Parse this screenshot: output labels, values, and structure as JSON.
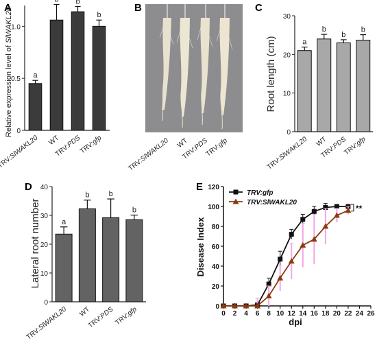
{
  "panels": {
    "A": {
      "label": "A",
      "chart_data": {
        "type": "bar",
        "categories": [
          "TRV:SlWAKL20",
          "WT",
          "TRV:PDS",
          "TRV:gfp"
        ],
        "values": [
          0.45,
          1.06,
          1.14,
          1.0
        ],
        "errors": [
          0.03,
          0.15,
          0.05,
          0.06
        ],
        "letters": [
          "a",
          "b",
          "b",
          "b"
        ],
        "ylabel_prefix": "Relative expression level of ",
        "ylabel_gene": "SlWAKL20",
        "ylim": [
          0,
          1.2
        ],
        "yticks": [
          "0",
          "0.5",
          "1.0"
        ],
        "ytick_values": [
          0,
          0.5,
          1.0
        ],
        "bar_color": "#3b3b3b"
      }
    },
    "B": {
      "label": "B",
      "categories": [
        "TRV:SlWAKL20",
        "WT",
        "TRV:PDS",
        "TRV:gfp"
      ],
      "photo_background": "#8d8d90"
    },
    "C": {
      "label": "C",
      "chart_data": {
        "type": "bar",
        "categories": [
          "TRV:SlWAKL20",
          "WT",
          "TRV:PDS",
          "TRV:gfp"
        ],
        "values": [
          21.0,
          24.0,
          23.0,
          23.7
        ],
        "errors": [
          0.9,
          1.2,
          0.8,
          1.4
        ],
        "letters": [
          "a",
          "b",
          "b",
          "b"
        ],
        "ylabel": "Root length (cm)",
        "ylim": [
          0,
          30
        ],
        "yticks": [
          "0",
          "10",
          "20",
          "30"
        ],
        "ytick_values": [
          0,
          10,
          20,
          30
        ],
        "bar_color": "#a8a8a8"
      }
    },
    "D": {
      "label": "D",
      "chart_data": {
        "type": "bar",
        "categories": [
          "TRV:SlWAKL20",
          "WT",
          "TRV:PDS",
          "TRV:gfp"
        ],
        "values": [
          23.5,
          32.3,
          29.2,
          28.5
        ],
        "errors": [
          2.5,
          3.0,
          6.5,
          1.6
        ],
        "letters": [
          "a",
          "b",
          "b",
          "b"
        ],
        "ylabel": "Lateral root number",
        "ylim": [
          0,
          40
        ],
        "yticks": [
          "0",
          "10",
          "20",
          "30",
          "40"
        ],
        "ytick_values": [
          0,
          10,
          20,
          30,
          40
        ],
        "bar_color": "#636363"
      }
    },
    "E": {
      "label": "E",
      "chart_data": {
        "type": "line",
        "xlabel": "dpi",
        "ylabel": "Disease Index",
        "xlim": [
          0,
          26
        ],
        "ylim": [
          0,
          120
        ],
        "xticks": [
          "0",
          "2",
          "4",
          "6",
          "8",
          "10",
          "12",
          "14",
          "16",
          "18",
          "20",
          "22",
          "24",
          "26"
        ],
        "xtick_values": [
          0,
          2,
          4,
          6,
          8,
          10,
          12,
          14,
          16,
          18,
          20,
          22,
          24,
          26
        ],
        "yticks": [
          "0",
          "20",
          "40",
          "60",
          "80",
          "100",
          "120"
        ],
        "ytick_values": [
          0,
          20,
          40,
          60,
          80,
          100,
          120
        ],
        "x": [
          0,
          2,
          4,
          6,
          8,
          10,
          12,
          14,
          16,
          18,
          20,
          22
        ],
        "series": [
          {
            "name": "TRV:gfp",
            "values": [
              0,
              0,
              0,
              1,
              22,
              47,
              72,
              87,
              95,
              99,
              100,
              100
            ],
            "errors": [
              0,
              0,
              0,
              2,
              6,
              8,
              5,
              5,
              5,
              4,
              1,
              1
            ],
            "color": "#111111",
            "marker": "square"
          },
          {
            "name": "TRV:SlWAKL20",
            "values": [
              0,
              0,
              0,
              0,
              10,
              28,
              45,
              61,
              67,
              80,
              91,
              96
            ],
            "errors": [
              0,
              0,
              0,
              8,
              10,
              13,
              18,
              22,
              25,
              18,
              7,
              4
            ],
            "color": "#8b3a0f",
            "error_color": "#f2a6e6",
            "marker": "triangle"
          }
        ],
        "significance": "**",
        "legend_position": "top-left"
      }
    }
  }
}
